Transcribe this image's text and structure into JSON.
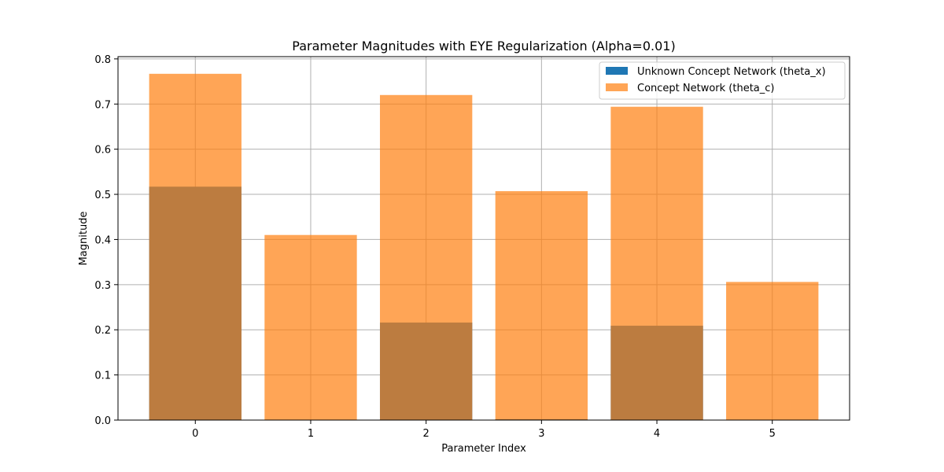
{
  "chart_data": {
    "type": "bar",
    "title": "Parameter Magnitudes with EYE Regularization (Alpha=0.01)",
    "xlabel": "Parameter Index",
    "ylabel": "Magnitude",
    "categories": [
      "0",
      "1",
      "2",
      "3",
      "4",
      "5"
    ],
    "ylim": [
      0,
      0.805
    ],
    "yticks": [
      "0.0",
      "0.1",
      "0.2",
      "0.3",
      "0.4",
      "0.5",
      "0.6",
      "0.7",
      "0.8"
    ],
    "grid": true,
    "legend_position": "top-right",
    "series": [
      {
        "name": "Unknown Concept Network (theta_x)",
        "color": "#1f77b4",
        "values": [
          0.517,
          0.0,
          0.216,
          0.002,
          0.209,
          0.0
        ]
      },
      {
        "name": "Concept Network (theta_c)",
        "color": "#ff7f0e",
        "opacity": 0.7,
        "values": [
          0.767,
          0.41,
          0.72,
          0.507,
          0.694,
          0.306
        ]
      }
    ]
  }
}
